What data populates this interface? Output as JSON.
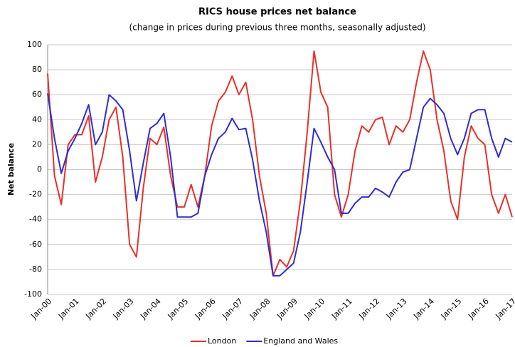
{
  "chart_data": {
    "type": "line",
    "title": "RICS house prices net balance",
    "subtitle": "(change in prices during previous three months, seasonally adjusted)",
    "y_label": "Net balance",
    "categories": [
      "Jan-00",
      null,
      null,
      null,
      "Jan-01",
      null,
      null,
      null,
      "Jan-02",
      null,
      null,
      null,
      "Jan-03",
      null,
      null,
      null,
      "Jan-04",
      null,
      null,
      null,
      "Jan-05",
      null,
      null,
      null,
      "Jan-06",
      null,
      null,
      null,
      "Jan-07",
      null,
      null,
      null,
      "Jan-08",
      null,
      null,
      null,
      "Jan-09",
      null,
      null,
      null,
      "Jan-10",
      null,
      null,
      null,
      "Jan-11",
      null,
      null,
      null,
      "Jan-12",
      null,
      null,
      null,
      "Jan-13",
      null,
      null,
      null,
      "Jan-14",
      null,
      null,
      null,
      "Jan-15",
      null,
      null,
      null,
      "Jan-16",
      null,
      null,
      null,
      "Jan-17"
    ],
    "series": [
      {
        "name": "London",
        "color": "#e8312a",
        "values": [
          77,
          -5,
          -28,
          20,
          28,
          28,
          43,
          -10,
          10,
          40,
          50,
          10,
          -60,
          -70,
          -15,
          25,
          20,
          34,
          -5,
          -30,
          -30,
          -12,
          -30,
          -5,
          35,
          55,
          62,
          75,
          60,
          70,
          40,
          -5,
          -35,
          -85,
          -72,
          -78,
          -65,
          -25,
          30,
          95,
          62,
          50,
          -20,
          -38,
          -20,
          15,
          35,
          30,
          40,
          42,
          20,
          35,
          30,
          40,
          70,
          95,
          80,
          40,
          15,
          -25,
          -40,
          10,
          35,
          25,
          20,
          -20,
          -35,
          -20,
          -38
        ]
      },
      {
        "name": "England and Wales",
        "color": "#2d2dd2",
        "values": [
          61,
          25,
          -3,
          15,
          25,
          37,
          52,
          20,
          30,
          60,
          55,
          48,
          15,
          -25,
          5,
          33,
          37,
          45,
          10,
          -38,
          -38,
          -38,
          -35,
          -5,
          12,
          25,
          30,
          41,
          32,
          33,
          8,
          -25,
          -50,
          -85,
          -85,
          -80,
          -75,
          -50,
          -10,
          33,
          22,
          10,
          0,
          -35,
          -35,
          -27,
          -22,
          -22,
          -15,
          -18,
          -22,
          -10,
          -2,
          0,
          25,
          50,
          57,
          52,
          45,
          25,
          12,
          25,
          45,
          48,
          48,
          25,
          10,
          25,
          22
        ]
      }
    ],
    "ylim": [
      -100,
      100
    ],
    "yticks": [
      -100,
      -80,
      -60,
      -40,
      -20,
      0,
      20,
      40,
      60,
      80,
      100
    ],
    "grid": true,
    "legend": "bottom"
  }
}
